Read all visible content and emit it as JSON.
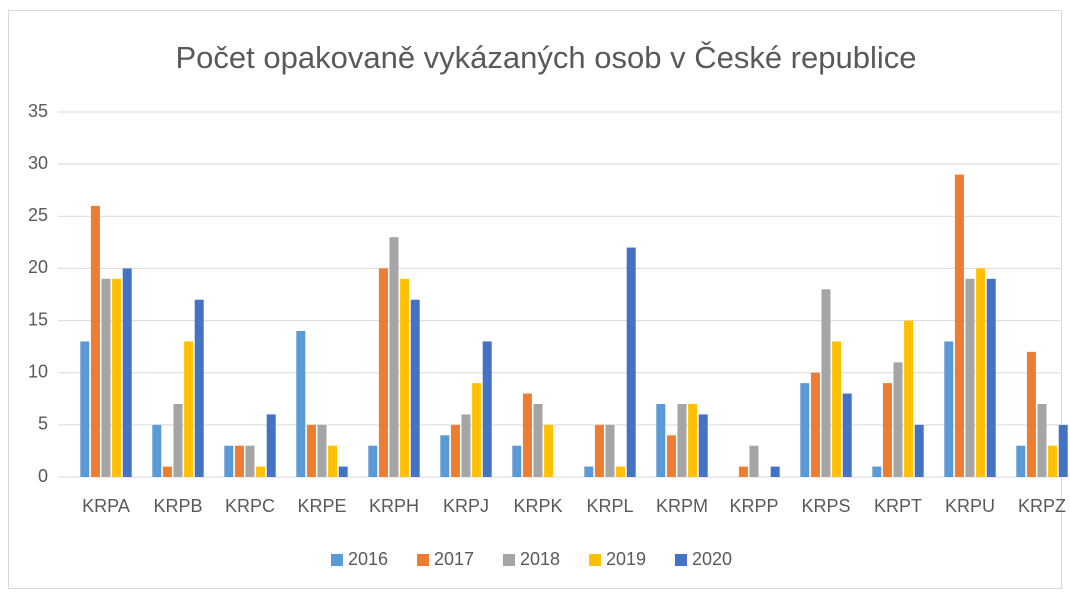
{
  "chart_data": {
    "type": "bar",
    "title": "Počet opakovaně vykázaných osob v České republice",
    "categories": [
      "KRPA",
      "KRPB",
      "KRPC",
      "KRPE",
      "KRPH",
      "KRPJ",
      "KRPK",
      "KRPL",
      "KRPM",
      "KRPP",
      "KRPS",
      "KRPT",
      "KRPU",
      "KRPZ"
    ],
    "series": [
      {
        "name": "2016",
        "color": "#5b9bd5",
        "values": [
          13,
          5,
          3,
          14,
          3,
          4,
          3,
          1,
          7,
          0,
          9,
          1,
          13,
          3
        ]
      },
      {
        "name": "2017",
        "color": "#ed7d31",
        "values": [
          26,
          1,
          3,
          5,
          20,
          5,
          8,
          5,
          4,
          1,
          10,
          9,
          29,
          12
        ]
      },
      {
        "name": "2018",
        "color": "#a5a5a5",
        "values": [
          19,
          7,
          3,
          5,
          23,
          6,
          7,
          5,
          7,
          3,
          18,
          11,
          19,
          7
        ]
      },
      {
        "name": "2019",
        "color": "#ffc000",
        "values": [
          19,
          13,
          1,
          3,
          19,
          9,
          5,
          1,
          7,
          0,
          13,
          15,
          20,
          3
        ]
      },
      {
        "name": "2020",
        "color": "#4472c4",
        "values": [
          20,
          17,
          6,
          1,
          17,
          13,
          0,
          22,
          6,
          1,
          8,
          5,
          19,
          5
        ]
      }
    ],
    "ylim": [
      0,
      35
    ],
    "yticks": [
      0,
      5,
      10,
      15,
      20,
      25,
      30,
      35
    ],
    "grid": true,
    "legend": "bottom"
  }
}
